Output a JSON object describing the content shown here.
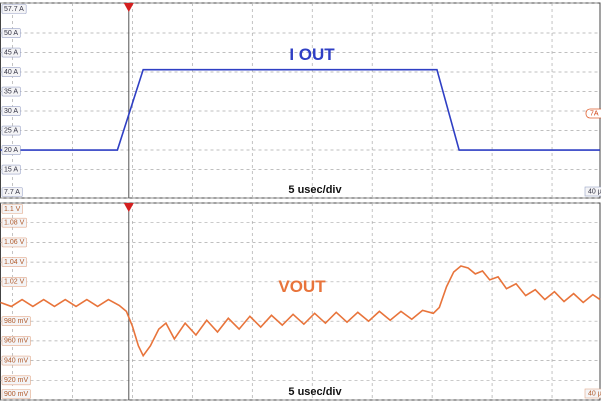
{
  "chart_data": [
    {
      "type": "line",
      "title": "I OUT",
      "xlabel": "5 usec/div",
      "corner_label": "40 µ",
      "marker_label": "7A",
      "xlim": [
        0,
        50
      ],
      "xticks": [
        1,
        6,
        11,
        16,
        21,
        26,
        31,
        36,
        41,
        46
      ],
      "trigger_x": 10.7,
      "ylim": [
        7.7,
        57.7
      ],
      "yticks": [
        {
          "value": 57.7,
          "label": "57.7 A"
        },
        {
          "value": 50,
          "label": "50 A"
        },
        {
          "value": 45,
          "label": "45 A"
        },
        {
          "value": 40,
          "label": "40 A"
        },
        {
          "value": 35,
          "label": "35 A"
        },
        {
          "value": 30,
          "label": "30 A"
        },
        {
          "value": 25,
          "label": "25 A"
        },
        {
          "value": 20,
          "label": "20 A"
        },
        {
          "value": 15,
          "label": "15 A"
        },
        {
          "value": 7.7,
          "label": "7.7 A"
        }
      ],
      "grid": true,
      "x": [
        0,
        9.75,
        11.9,
        36.4,
        38.25,
        50
      ],
      "series": [
        {
          "color": "#2f3fc4",
          "values": [
            20,
            20,
            40.6,
            40.6,
            20,
            20
          ]
        }
      ]
    },
    {
      "type": "line",
      "title": "VOUT",
      "xlabel": "5 usec/div",
      "corner_label": "40 µ",
      "xlim": [
        0,
        50
      ],
      "xticks": [
        1,
        6,
        11,
        16,
        21,
        26,
        31,
        36,
        41,
        46
      ],
      "trigger_x": 10.7,
      "ylim": [
        0.9,
        1.1
      ],
      "yticks": [
        {
          "value": 1.1,
          "label": "1.1 V"
        },
        {
          "value": 1.08,
          "label": "1.08 V"
        },
        {
          "value": 1.06,
          "label": "1.06 V"
        },
        {
          "value": 1.04,
          "label": "1.04 V"
        },
        {
          "value": 1.02,
          "label": "1.02 V"
        },
        {
          "value": 0.98,
          "label": "980 mV"
        },
        {
          "value": 0.96,
          "label": "960 mV"
        },
        {
          "value": 0.94,
          "label": "940 mV"
        },
        {
          "value": 0.92,
          "label": "920 mV"
        },
        {
          "value": 0.9,
          "label": "900 mV"
        }
      ],
      "grid": true,
      "x": [
        0,
        0.9,
        1.8,
        2.7,
        3.6,
        4.5,
        5.4,
        6.3,
        7.2,
        8.1,
        9.0,
        9.9,
        10.5,
        11,
        11.5,
        11.9,
        12.5,
        13.2,
        13.8,
        14.5,
        15.4,
        16.3,
        17.2,
        18.1,
        19,
        19.9,
        20.8,
        21.7,
        22.6,
        23.5,
        24.4,
        25.3,
        26.2,
        27.1,
        28,
        28.9,
        29.8,
        30.7,
        31.6,
        32.5,
        33.4,
        34.3,
        35.2,
        36.1,
        36.6,
        37.2,
        37.8,
        38.4,
        39.0,
        39.6,
        40.2,
        40.8,
        41.5,
        42.2,
        43,
        43.8,
        44.6,
        45.4,
        46.2,
        47,
        47.8,
        48.6,
        49.4,
        50
      ],
      "series": [
        {
          "color": "#e8743b",
          "values": [
            0.999,
            0.995,
            1.002,
            0.995,
            1.002,
            0.995,
            1.002,
            0.995,
            1.002,
            0.995,
            1.002,
            0.996,
            0.99,
            0.975,
            0.955,
            0.945,
            0.955,
            0.972,
            0.978,
            0.962,
            0.978,
            0.966,
            0.981,
            0.969,
            0.983,
            0.972,
            0.985,
            0.974,
            0.986,
            0.976,
            0.987,
            0.977,
            0.988,
            0.978,
            0.989,
            0.979,
            0.989,
            0.98,
            0.99,
            0.981,
            0.99,
            0.982,
            0.991,
            0.988,
            0.994,
            1.015,
            1.03,
            1.036,
            1.034,
            1.028,
            1.031,
            1.022,
            1.025,
            1.013,
            1.018,
            1.006,
            1.012,
            1.002,
            1.01,
            1.0,
            1.008,
            0.999,
            1.007,
            1.002
          ]
        }
      ]
    }
  ]
}
